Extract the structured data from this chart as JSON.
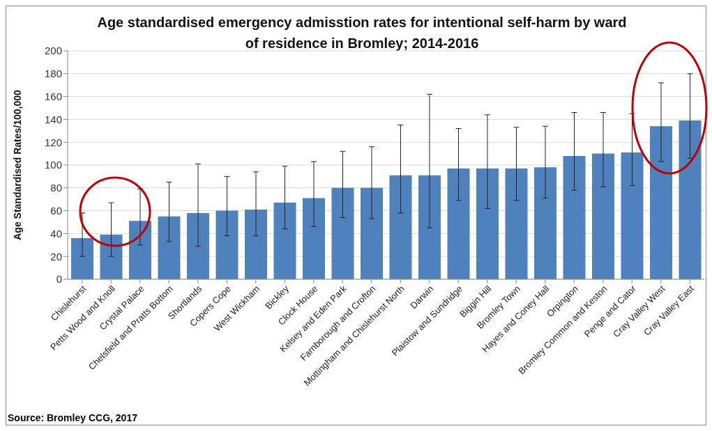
{
  "chart_data": {
    "type": "bar",
    "title": "Age standardised emergency admisstion rates for intentional self-harm by ward of residence in Bromley; 2014-2016",
    "ylabel": "Age Standardised Rates/100,000",
    "annotations": [
      "Source: Bromley CCG, 2017"
    ],
    "categories": [
      "Chislehurst",
      "Petts Wood and Knoll",
      "Crystal Palace",
      "Chelsfield and Pratts Bottom",
      "Shortlands",
      "Copers Cope",
      "West Wickham",
      "Bickley",
      "Clock House",
      "Kelsey and Eden Park",
      "Farnborough and Crofton",
      "Mottingham and Chislehurst North",
      "Darwin",
      "Plaistow and Sundridge",
      "Biggin Hill",
      "Bromley Town",
      "Hayes and Coney Hall",
      "Orpington",
      "Bromley Common and Keston",
      "Penge and Cator",
      "Cray Valley West",
      "Cray Valley East"
    ],
    "values": [
      36,
      39,
      51,
      55,
      58,
      60,
      61,
      67,
      71,
      80,
      80,
      91,
      91,
      97,
      97,
      97,
      98,
      108,
      110,
      111,
      134,
      139
    ],
    "errors": [
      [
        20,
        58
      ],
      [
        20,
        67
      ],
      [
        30,
        79
      ],
      [
        33,
        85
      ],
      [
        29,
        101
      ],
      [
        38,
        90
      ],
      [
        38,
        94
      ],
      [
        44,
        99
      ],
      [
        46,
        103
      ],
      [
        54,
        112
      ],
      [
        53,
        116
      ],
      [
        58,
        135
      ],
      [
        45,
        162
      ],
      [
        69,
        132
      ],
      [
        62,
        144
      ],
      [
        69,
        133
      ],
      [
        71,
        134
      ],
      [
        78,
        146
      ],
      [
        81,
        146
      ],
      [
        82,
        145
      ],
      [
        103,
        172
      ],
      [
        106,
        180
      ]
    ],
    "color": "#4f81bd",
    "ylim": [
      0,
      200
    ],
    "yticks": [
      0,
      20,
      40,
      60,
      80,
      100,
      120,
      140,
      160,
      180,
      200
    ],
    "grid": "y"
  }
}
